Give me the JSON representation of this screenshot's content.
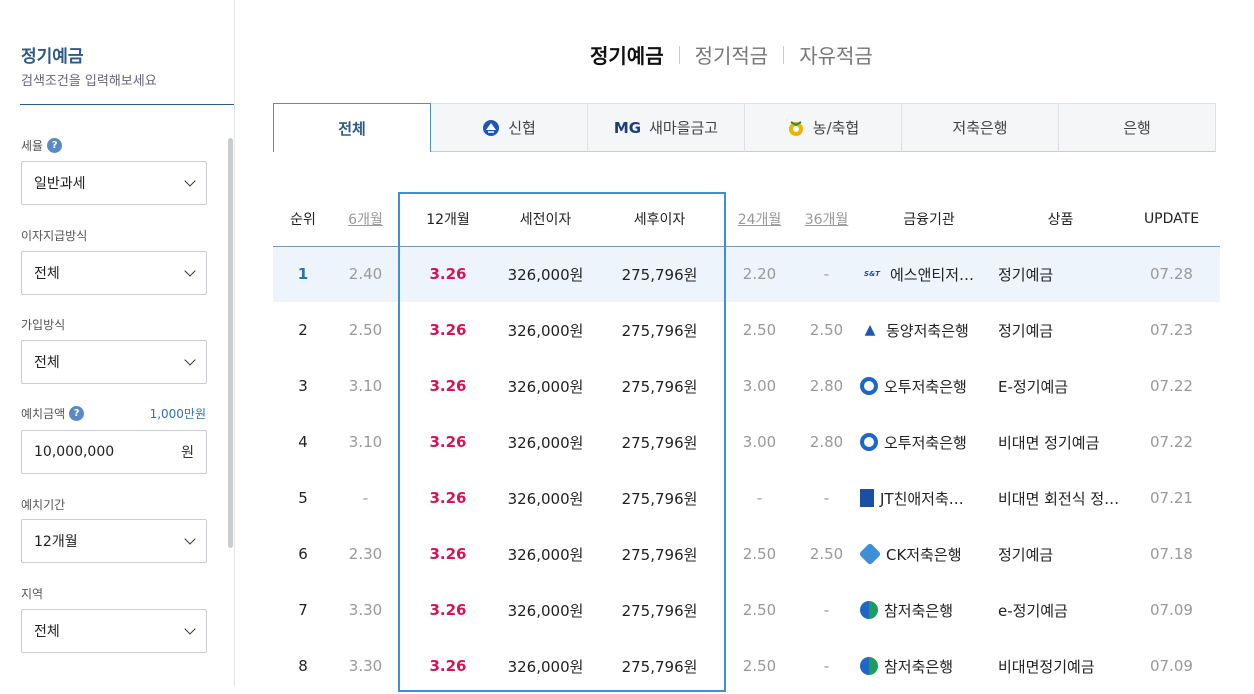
{
  "sidebar": {
    "title": "정기예금",
    "subtitle": "검색조건을 입력해보세요",
    "fields": [
      {
        "label": "세율",
        "has_help": true,
        "value": "일반과세",
        "type": "select"
      },
      {
        "label": "이자지급방식",
        "has_help": false,
        "value": "전체",
        "type": "select"
      },
      {
        "label": "가입방식",
        "has_help": false,
        "value": "전체",
        "type": "select"
      },
      {
        "label": "예치금액",
        "has_help": true,
        "aux": "1,000만원",
        "value": "10,000,000",
        "unit": "원",
        "type": "input"
      },
      {
        "label": "예치기간",
        "has_help": false,
        "value": "12개월",
        "type": "select"
      },
      {
        "label": "지역",
        "has_help": false,
        "value": "전체",
        "type": "select"
      }
    ]
  },
  "top_tabs": [
    "정기예금",
    "정기적금",
    "자유적금"
  ],
  "category_tabs": [
    "전체",
    "신협",
    "새마을금고",
    "농/축협",
    "저축은행",
    "은행"
  ],
  "mg_prefix": "MG",
  "table": {
    "headers": [
      "순위",
      "6개월",
      "12개월",
      "세전이자",
      "세후이자",
      "24개월",
      "36개월",
      "금융기관",
      "상품",
      "UPDATE"
    ],
    "rows": [
      {
        "rank": "1",
        "m6": "2.40",
        "m12": "3.26",
        "pre": "326,000원",
        "post": "275,796원",
        "m24": "2.20",
        "m36": "-",
        "logo": "S&T",
        "inst": "에스앤티저…",
        "prod": "정기예금",
        "update": "07.28"
      },
      {
        "rank": "2",
        "m6": "2.50",
        "m12": "3.26",
        "pre": "326,000원",
        "post": "275,796원",
        "m24": "2.50",
        "m36": "2.50",
        "logo": "dy",
        "inst": "동양저축은행",
        "prod": "정기예금",
        "update": "07.23"
      },
      {
        "rank": "3",
        "m6": "3.10",
        "m12": "3.26",
        "pre": "326,000원",
        "post": "275,796원",
        "m24": "3.00",
        "m36": "2.80",
        "logo": "ot",
        "inst": "오투저축은행",
        "prod": "E-정기예금",
        "update": "07.22"
      },
      {
        "rank": "4",
        "m6": "3.10",
        "m12": "3.26",
        "pre": "326,000원",
        "post": "275,796원",
        "m24": "3.00",
        "m36": "2.80",
        "logo": "ot",
        "inst": "오투저축은행",
        "prod": "비대면 정기예금",
        "update": "07.22"
      },
      {
        "rank": "5",
        "m6": "-",
        "m12": "3.26",
        "pre": "326,000원",
        "post": "275,796원",
        "m24": "-",
        "m36": "-",
        "logo": "jt",
        "inst": "JT친애저축…",
        "prod": "비대면 회전식 정…",
        "update": "07.21"
      },
      {
        "rank": "6",
        "m6": "2.30",
        "m12": "3.26",
        "pre": "326,000원",
        "post": "275,796원",
        "m24": "2.50",
        "m36": "2.50",
        "logo": "ck",
        "inst": "CK저축은행",
        "prod": "정기예금",
        "update": "07.18"
      },
      {
        "rank": "7",
        "m6": "3.30",
        "m12": "3.26",
        "pre": "326,000원",
        "post": "275,796원",
        "m24": "2.50",
        "m36": "-",
        "logo": "cham",
        "inst": "참저축은행",
        "prod": "e-정기예금",
        "update": "07.09"
      },
      {
        "rank": "8",
        "m6": "3.30",
        "m12": "3.26",
        "pre": "326,000원",
        "post": "275,796원",
        "m24": "2.50",
        "m36": "-",
        "logo": "cham",
        "inst": "참저축은행",
        "prod": "비대면정기예금",
        "update": "07.09"
      }
    ]
  }
}
